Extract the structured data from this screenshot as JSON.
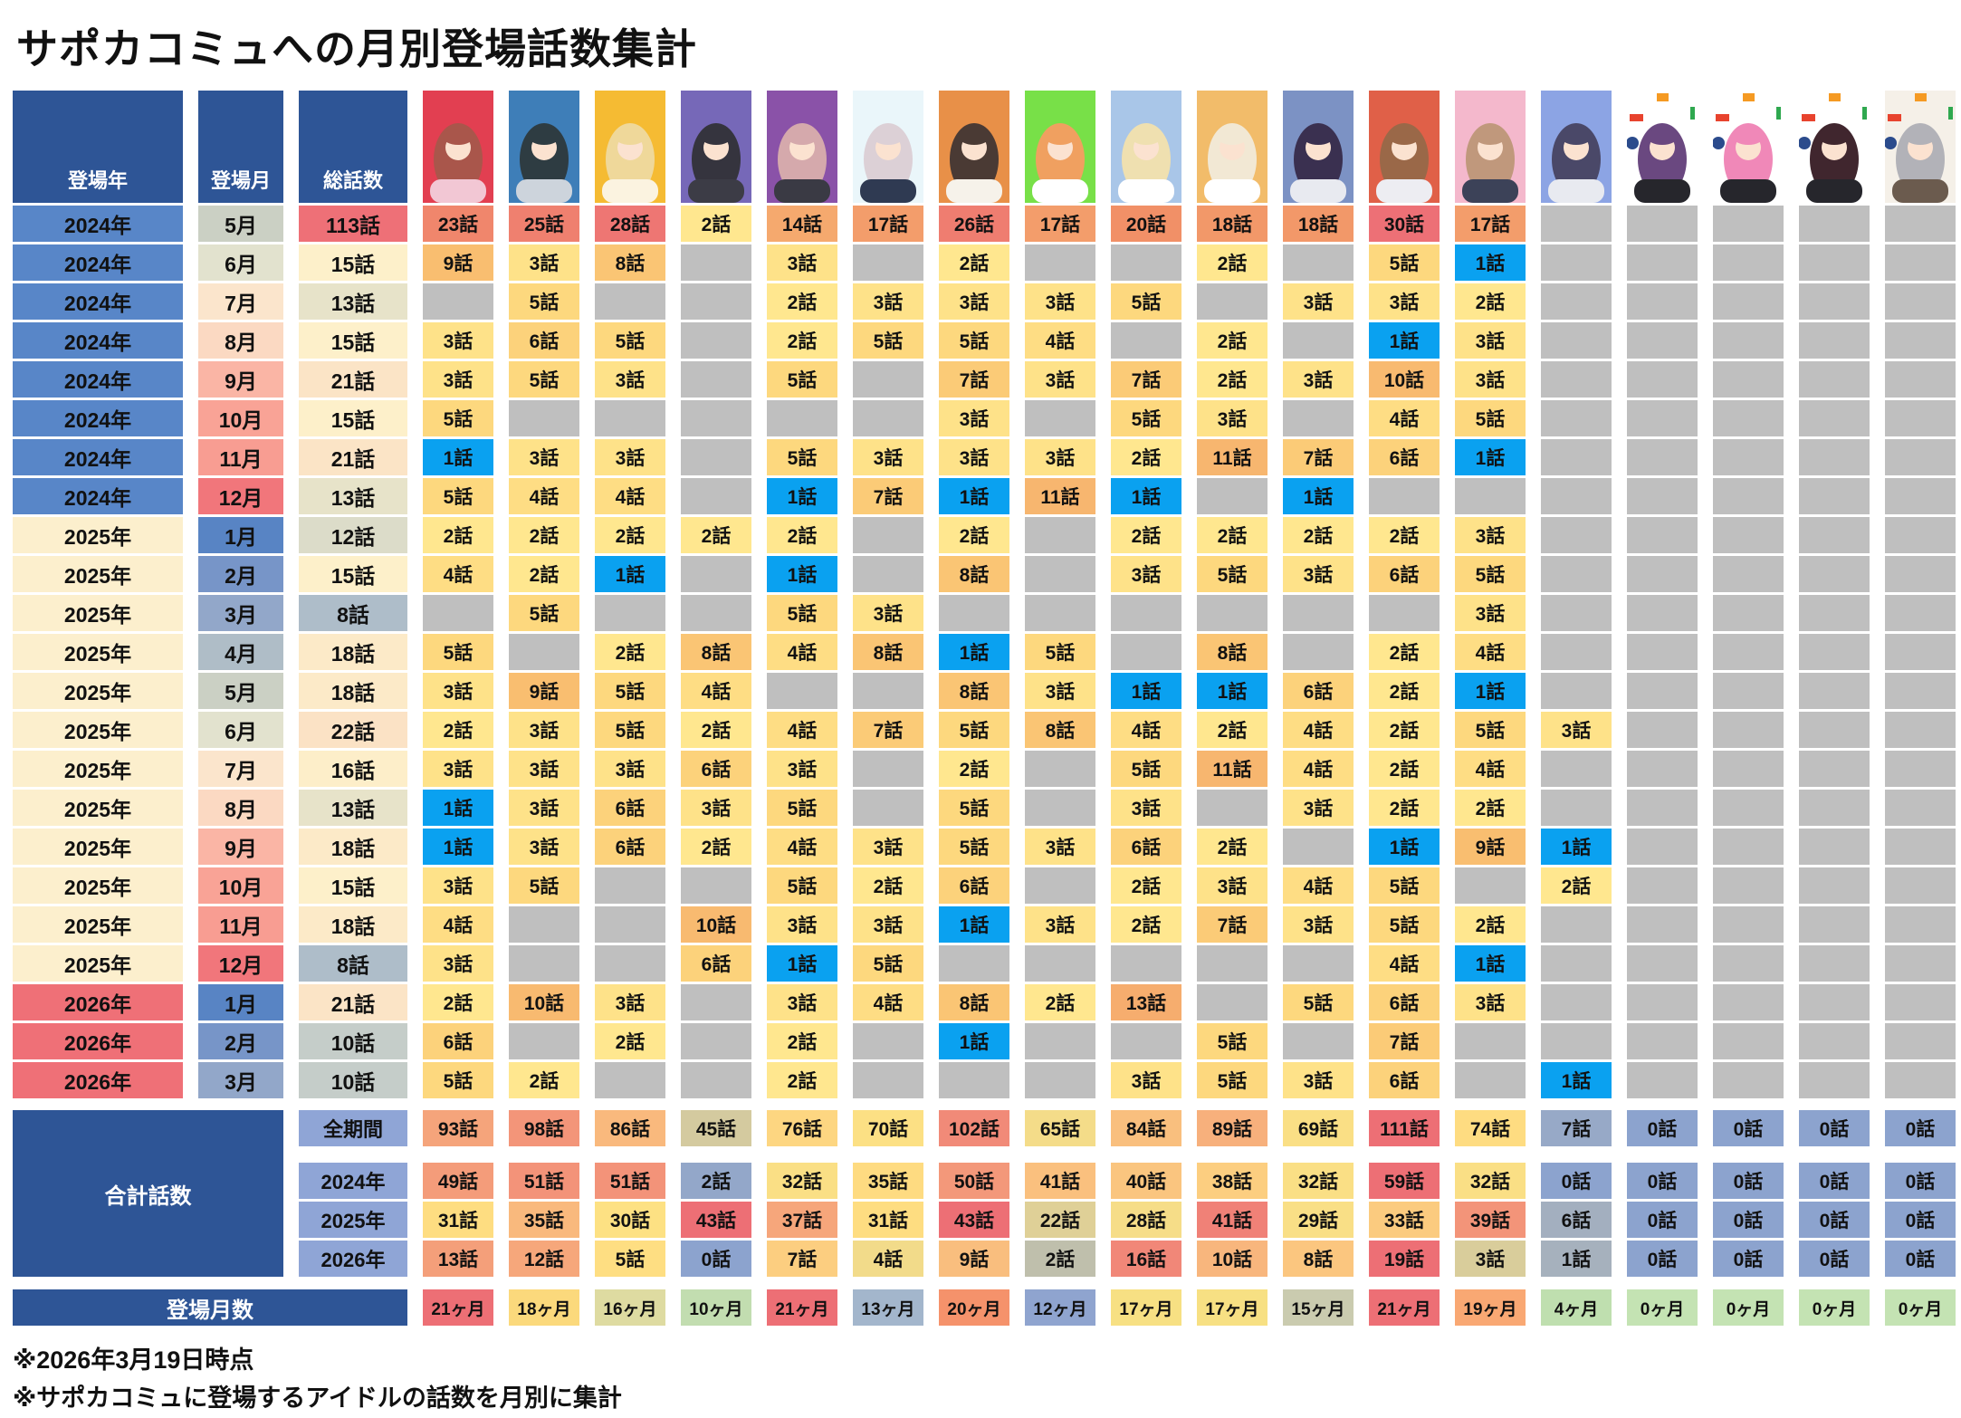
{
  "title": "サポカコミュへの月別登場話数集計",
  "columns": {
    "year": "登場年",
    "month": "登場月",
    "total": "総話数"
  },
  "units": {
    "episode": "話",
    "months": "ヶ月"
  },
  "characters": [
    {
      "bg": "#E23F51",
      "hair": "#A9564B",
      "cloth": "#F2C7D4"
    },
    {
      "bg": "#3E7EB8",
      "hair": "#2E3C42",
      "cloth": "#CDD4DC"
    },
    {
      "bg": "#F5BB33",
      "hair": "#EFD89A",
      "cloth": "#FBF3E0"
    },
    {
      "bg": "#7668B8",
      "hair": "#35343E",
      "cloth": "#3C3C46"
    },
    {
      "bg": "#8A52A8",
      "hair": "#D5A9AC",
      "cloth": "#3A3A44"
    },
    {
      "bg": "#EAF6FA",
      "hair": "#DCD0D6",
      "cloth": "#2F3A52"
    },
    {
      "bg": "#E89048",
      "hair": "#4A3A34",
      "cloth": "#F6F2EA"
    },
    {
      "bg": "#78E048",
      "hair": "#F0A060",
      "cloth": "#FFFFFF"
    },
    {
      "bg": "#A9C6E8",
      "hair": "#EFE0B0",
      "cloth": "#FFFFFF"
    },
    {
      "bg": "#F2BC6A",
      "hair": "#F2E8D4",
      "cloth": "#FFFFFF"
    },
    {
      "bg": "#7C92C4",
      "hair": "#3A3050",
      "cloth": "#E8EAF0"
    },
    {
      "bg": "#E06048",
      "hair": "#9A6848",
      "cloth": "#EDEDF2"
    },
    {
      "bg": "#F4B8CC",
      "hair": "#C0987C",
      "cloth": "#3C4258"
    },
    {
      "bg": "#8CA4E4",
      "hair": "#4A4868",
      "cloth": "#E8EAF0"
    },
    {
      "bg": "#FFFFFF",
      "hair": "#6A4880",
      "cloth": "#26262C",
      "deco": true
    },
    {
      "bg": "#FFFFFF",
      "hair": "#F088B8",
      "cloth": "#26262C",
      "deco": true
    },
    {
      "bg": "#FFFFFF",
      "hair": "#40262E",
      "cloth": "#26262C",
      "deco": true
    },
    {
      "bg": "#F5F0E8",
      "hair": "#B2B2B8",
      "cloth": "#6B5B4E",
      "deco": true
    }
  ],
  "monthly_rows": [
    {
      "year": "2024年",
      "month": "5月",
      "m": 5,
      "total": 113,
      "v": [
        23,
        25,
        28,
        2,
        14,
        17,
        26,
        17,
        20,
        18,
        18,
        30,
        17,
        null,
        null,
        null,
        null,
        null
      ]
    },
    {
      "year": "2024年",
      "month": "6月",
      "m": 6,
      "total": 15,
      "v": [
        9,
        3,
        8,
        null,
        3,
        null,
        2,
        null,
        null,
        2,
        null,
        5,
        1,
        null,
        null,
        null,
        null,
        null
      ]
    },
    {
      "year": "2024年",
      "month": "7月",
      "m": 7,
      "total": 13,
      "v": [
        null,
        5,
        null,
        null,
        2,
        3,
        3,
        3,
        5,
        null,
        3,
        3,
        2,
        null,
        null,
        null,
        null,
        null
      ]
    },
    {
      "year": "2024年",
      "month": "8月",
      "m": 8,
      "total": 15,
      "v": [
        3,
        6,
        5,
        null,
        2,
        5,
        5,
        4,
        null,
        2,
        null,
        1,
        3,
        null,
        null,
        null,
        null,
        null
      ]
    },
    {
      "year": "2024年",
      "month": "9月",
      "m": 9,
      "total": 21,
      "v": [
        3,
        5,
        3,
        null,
        5,
        null,
        7,
        3,
        7,
        2,
        3,
        10,
        3,
        null,
        null,
        null,
        null,
        null
      ]
    },
    {
      "year": "2024年",
      "month": "10月",
      "m": 10,
      "total": 15,
      "v": [
        5,
        null,
        null,
        null,
        null,
        null,
        3,
        null,
        5,
        3,
        null,
        4,
        5,
        null,
        null,
        null,
        null,
        null
      ]
    },
    {
      "year": "2024年",
      "month": "11月",
      "m": 11,
      "total": 21,
      "v": [
        1,
        3,
        3,
        null,
        5,
        3,
        3,
        3,
        2,
        11,
        7,
        6,
        1,
        null,
        null,
        null,
        null,
        null
      ]
    },
    {
      "year": "2024年",
      "month": "12月",
      "m": 12,
      "total": 13,
      "v": [
        5,
        4,
        4,
        null,
        1,
        7,
        1,
        11,
        1,
        null,
        1,
        null,
        null,
        null,
        null,
        null,
        null,
        null
      ]
    },
    {
      "year": "2025年",
      "month": "1月",
      "m": 1,
      "total": 12,
      "v": [
        2,
        2,
        2,
        2,
        2,
        null,
        2,
        null,
        2,
        2,
        2,
        2,
        3,
        null,
        null,
        null,
        null,
        null
      ]
    },
    {
      "year": "2025年",
      "month": "2月",
      "m": 2,
      "total": 15,
      "v": [
        4,
        2,
        1,
        null,
        1,
        null,
        8,
        null,
        3,
        5,
        3,
        6,
        5,
        null,
        null,
        null,
        null,
        null
      ]
    },
    {
      "year": "2025年",
      "month": "3月",
      "m": 3,
      "total": 8,
      "v": [
        null,
        5,
        null,
        null,
        5,
        3,
        null,
        null,
        null,
        null,
        null,
        null,
        3,
        null,
        null,
        null,
        null,
        null
      ]
    },
    {
      "year": "2025年",
      "month": "4月",
      "m": 4,
      "total": 18,
      "v": [
        5,
        null,
        2,
        8,
        4,
        8,
        1,
        5,
        null,
        8,
        null,
        2,
        4,
        null,
        null,
        null,
        null,
        null
      ]
    },
    {
      "year": "2025年",
      "month": "5月",
      "m": 5,
      "total": 18,
      "v": [
        3,
        9,
        5,
        4,
        null,
        null,
        8,
        3,
        1,
        1,
        6,
        2,
        1,
        null,
        null,
        null,
        null,
        null
      ]
    },
    {
      "year": "2025年",
      "month": "6月",
      "m": 6,
      "total": 22,
      "v": [
        2,
        3,
        5,
        2,
        4,
        7,
        5,
        8,
        4,
        2,
        4,
        2,
        5,
        3,
        null,
        null,
        null,
        null
      ]
    },
    {
      "year": "2025年",
      "month": "7月",
      "m": 7,
      "total": 16,
      "v": [
        3,
        3,
        3,
        6,
        3,
        null,
        2,
        null,
        5,
        11,
        4,
        2,
        4,
        null,
        null,
        null,
        null,
        null
      ]
    },
    {
      "year": "2025年",
      "month": "8月",
      "m": 8,
      "total": 13,
      "v": [
        1,
        3,
        6,
        3,
        5,
        null,
        5,
        null,
        3,
        null,
        3,
        2,
        2,
        null,
        null,
        null,
        null,
        null
      ]
    },
    {
      "year": "2025年",
      "month": "9月",
      "m": 9,
      "total": 18,
      "v": [
        1,
        3,
        6,
        2,
        4,
        3,
        5,
        3,
        6,
        2,
        null,
        1,
        9,
        1,
        null,
        null,
        null,
        null
      ]
    },
    {
      "year": "2025年",
      "month": "10月",
      "m": 10,
      "total": 15,
      "v": [
        3,
        5,
        null,
        null,
        5,
        2,
        6,
        null,
        2,
        3,
        4,
        5,
        null,
        2,
        null,
        null,
        null,
        null
      ]
    },
    {
      "year": "2025年",
      "month": "11月",
      "m": 11,
      "total": 18,
      "v": [
        4,
        null,
        null,
        10,
        3,
        3,
        1,
        3,
        2,
        7,
        3,
        5,
        2,
        null,
        null,
        null,
        null,
        null
      ]
    },
    {
      "year": "2025年",
      "month": "12月",
      "m": 12,
      "total": 8,
      "v": [
        3,
        null,
        null,
        6,
        1,
        5,
        null,
        null,
        null,
        null,
        null,
        4,
        1,
        null,
        null,
        null,
        null,
        null
      ]
    },
    {
      "year": "2026年",
      "month": "1月",
      "m": 1,
      "total": 21,
      "v": [
        2,
        10,
        3,
        null,
        3,
        4,
        8,
        2,
        13,
        null,
        5,
        6,
        3,
        null,
        null,
        null,
        null,
        null
      ]
    },
    {
      "year": "2026年",
      "month": "2月",
      "m": 2,
      "total": 10,
      "v": [
        6,
        null,
        2,
        null,
        2,
        null,
        1,
        null,
        null,
        5,
        null,
        7,
        null,
        null,
        null,
        null,
        null,
        null
      ]
    },
    {
      "year": "2026年",
      "month": "3月",
      "m": 3,
      "total": 10,
      "v": [
        5,
        2,
        null,
        null,
        2,
        null,
        null,
        null,
        3,
        5,
        3,
        6,
        null,
        1,
        null,
        null,
        null,
        null
      ]
    }
  ],
  "summary": {
    "label": "合計話数",
    "rows": [
      {
        "label": "全期間",
        "v": [
          93,
          98,
          86,
          45,
          76,
          70,
          102,
          65,
          84,
          89,
          69,
          111,
          74,
          7,
          0,
          0,
          0,
          0
        ]
      },
      {
        "label": "2024年",
        "v": [
          49,
          51,
          51,
          2,
          32,
          35,
          50,
          41,
          40,
          38,
          32,
          59,
          32,
          0,
          0,
          0,
          0,
          0
        ]
      },
      {
        "label": "2025年",
        "v": [
          31,
          35,
          30,
          43,
          37,
          31,
          43,
          22,
          28,
          41,
          29,
          33,
          39,
          6,
          0,
          0,
          0,
          0
        ]
      },
      {
        "label": "2026年",
        "v": [
          13,
          12,
          5,
          0,
          7,
          4,
          9,
          2,
          16,
          10,
          8,
          19,
          3,
          1,
          0,
          0,
          0,
          0
        ]
      }
    ]
  },
  "appearance_months": {
    "label": "登場月数",
    "v": [
      21,
      18,
      16,
      10,
      21,
      13,
      20,
      12,
      17,
      17,
      15,
      21,
      19,
      4,
      0,
      0,
      0,
      0
    ],
    "colors": [
      "#ED6F75",
      "#FBD97C",
      "#DEDBA1",
      "#C2DDB0",
      "#ED6F75",
      "#A3B6CC",
      "#F5926B",
      "#8FA4CF",
      "#F7E083",
      "#F7E083",
      "#CACBAF",
      "#ED6F75",
      "#F9A873",
      "#BFDFAF",
      "#C4E3B3",
      "#C4E3B3",
      "#C4E3B3",
      "#C4E3B3"
    ]
  },
  "footnotes": [
    "※2026年3月19日時点",
    "※サポカコミュに登場するアイドルの話数を月別に集計"
  ],
  "palette": {
    "header_bg": "#2E5596",
    "sublabel_bg": "#8FA5D6",
    "empty_cell": "#BFBFBF",
    "highlight_blue": "#0AA1F0",
    "grid_scale": [
      [
        2,
        "#FFE78F"
      ],
      [
        5,
        "#FDD87E"
      ],
      [
        9,
        "#F9BE70"
      ],
      [
        14,
        "#F5A96E"
      ],
      [
        20,
        "#F19067"
      ],
      [
        30,
        "#ED7076"
      ]
    ],
    "total_scale": [
      [
        8,
        "#AEBDC9"
      ],
      [
        12,
        "#DCDCC9"
      ],
      [
        15,
        "#FDF0CA"
      ],
      [
        22,
        "#FBE2C5"
      ],
      [
        113,
        "#EE7077"
      ]
    ],
    "month_scale": [
      "#5884C4",
      "#7795C8",
      "#92A7C9",
      "#AFBDC7",
      "#CBD0C4",
      "#E2E2CE",
      "#FBE5CC",
      "#FBD9C2",
      "#FAB5A5",
      "#F9A396",
      "#F89D92",
      "#F1767B"
    ],
    "year_scale": {
      "2024年": "#5886C8",
      "2025年": "#FCEFCD",
      "2026年": "#EF7077"
    },
    "summary_scale": {
      "min": "#8CA3CE",
      "mid": "#FFE282",
      "max": "#ED6F75"
    }
  }
}
